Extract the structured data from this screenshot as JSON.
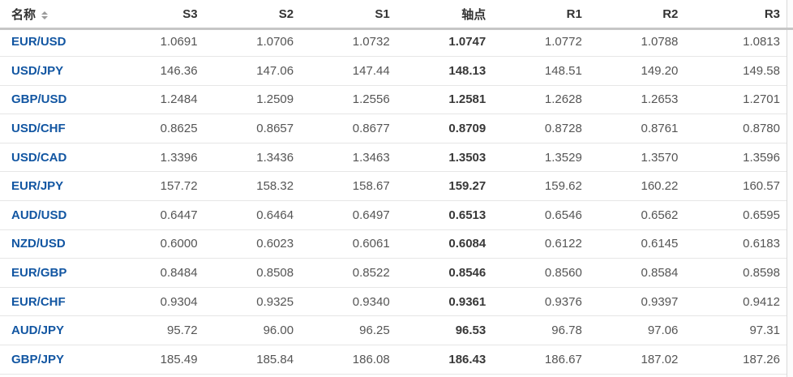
{
  "table": {
    "columns": [
      {
        "key": "name",
        "label": "名称",
        "sortable": true
      },
      {
        "key": "s3",
        "label": "S3"
      },
      {
        "key": "s2",
        "label": "S2"
      },
      {
        "key": "s1",
        "label": "S1"
      },
      {
        "key": "pivot",
        "label": "轴点"
      },
      {
        "key": "r1",
        "label": "R1"
      },
      {
        "key": "r2",
        "label": "R2"
      },
      {
        "key": "r3",
        "label": "R3"
      }
    ],
    "rows": [
      {
        "pair": "EUR/USD",
        "s3": "1.0691",
        "s2": "1.0706",
        "s1": "1.0732",
        "pivot": "1.0747",
        "r1": "1.0772",
        "r2": "1.0788",
        "r3": "1.0813"
      },
      {
        "pair": "USD/JPY",
        "s3": "146.36",
        "s2": "147.06",
        "s1": "147.44",
        "pivot": "148.13",
        "r1": "148.51",
        "r2": "149.20",
        "r3": "149.58"
      },
      {
        "pair": "GBP/USD",
        "s3": "1.2484",
        "s2": "1.2509",
        "s1": "1.2556",
        "pivot": "1.2581",
        "r1": "1.2628",
        "r2": "1.2653",
        "r3": "1.2701"
      },
      {
        "pair": "USD/CHF",
        "s3": "0.8625",
        "s2": "0.8657",
        "s1": "0.8677",
        "pivot": "0.8709",
        "r1": "0.8728",
        "r2": "0.8761",
        "r3": "0.8780"
      },
      {
        "pair": "USD/CAD",
        "s3": "1.3396",
        "s2": "1.3436",
        "s1": "1.3463",
        "pivot": "1.3503",
        "r1": "1.3529",
        "r2": "1.3570",
        "r3": "1.3596"
      },
      {
        "pair": "EUR/JPY",
        "s3": "157.72",
        "s2": "158.32",
        "s1": "158.67",
        "pivot": "159.27",
        "r1": "159.62",
        "r2": "160.22",
        "r3": "160.57"
      },
      {
        "pair": "AUD/USD",
        "s3": "0.6447",
        "s2": "0.6464",
        "s1": "0.6497",
        "pivot": "0.6513",
        "r1": "0.6546",
        "r2": "0.6562",
        "r3": "0.6595"
      },
      {
        "pair": "NZD/USD",
        "s3": "0.6000",
        "s2": "0.6023",
        "s1": "0.6061",
        "pivot": "0.6084",
        "r1": "0.6122",
        "r2": "0.6145",
        "r3": "0.6183"
      },
      {
        "pair": "EUR/GBP",
        "s3": "0.8484",
        "s2": "0.8508",
        "s1": "0.8522",
        "pivot": "0.8546",
        "r1": "0.8560",
        "r2": "0.8584",
        "r3": "0.8598"
      },
      {
        "pair": "EUR/CHF",
        "s3": "0.9304",
        "s2": "0.9325",
        "s1": "0.9340",
        "pivot": "0.9361",
        "r1": "0.9376",
        "r2": "0.9397",
        "r3": "0.9412"
      },
      {
        "pair": "AUD/JPY",
        "s3": "95.72",
        "s2": "96.00",
        "s1": "96.25",
        "pivot": "96.53",
        "r1": "96.78",
        "r2": "97.06",
        "r3": "97.31"
      },
      {
        "pair": "GBP/JPY",
        "s3": "185.49",
        "s2": "185.84",
        "s1": "186.08",
        "pivot": "186.43",
        "r1": "186.67",
        "r2": "187.02",
        "r3": "187.26"
      }
    ]
  },
  "icons": {
    "name_sort": "sort-arrows-icon"
  },
  "colors": {
    "pair_link": "#1256a2",
    "value_text": "#555555",
    "pivot_text": "#383838",
    "header_text": "#333333",
    "header_rule": "#c6c6c6",
    "row_divider": "#e6e6e6"
  }
}
